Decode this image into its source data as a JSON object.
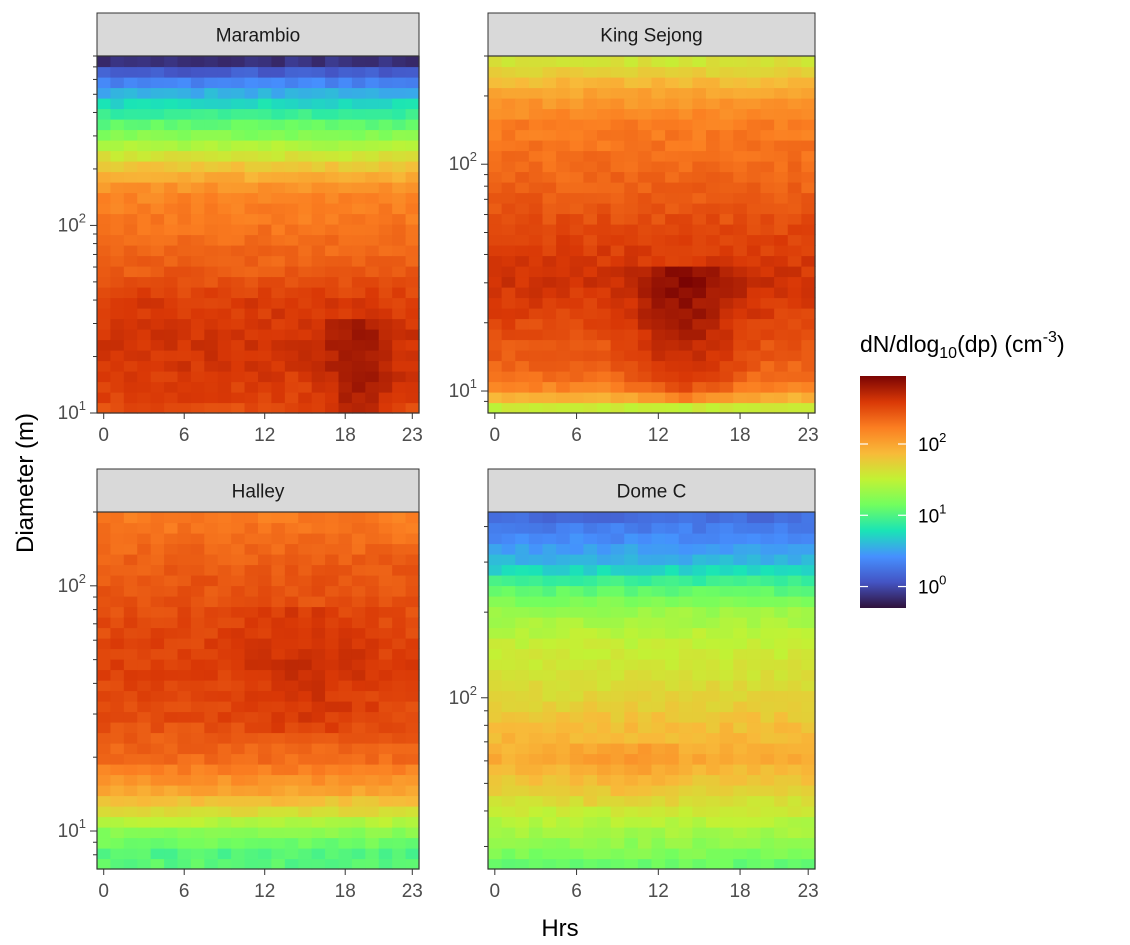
{
  "chart_data": {
    "type": "heatmap",
    "x_label": "Hrs",
    "y_label": "Diameter (m)",
    "color_scale": {
      "title": "dN/dlog",
      "title_sub": "10",
      "title_mid": "(dp) (cm",
      "title_sup": "-3",
      "title_end": ")",
      "log_scale": true,
      "range": [
        0.5,
        900
      ],
      "ticks": [
        {
          "base": "10",
          "exp": "0",
          "value": 1
        },
        {
          "base": "10",
          "exp": "1",
          "value": 10
        },
        {
          "base": "10",
          "exp": "2",
          "value": 100
        }
      ],
      "palette": [
        "#30123b",
        "#4454c4",
        "#4690ff",
        "#1ae4b6",
        "#71fe5f",
        "#c2f234",
        "#f8ba39",
        "#fb7e21",
        "#d93806",
        "#7a0403"
      ]
    },
    "panels": [
      {
        "name": "Marambio",
        "x_ticks": [
          "0",
          "6",
          "12",
          "18",
          "23"
        ],
        "x_range": [
          0,
          23
        ],
        "y_log": true,
        "y_range": [
          10,
          800
        ],
        "y_labeled_ticks": [
          {
            "base": "10",
            "exp": "2",
            "value": 100
          },
          {
            "base": "10",
            "exp": "1",
            "value": 10
          }
        ],
        "y_minor_ticks": [
          20,
          30,
          40,
          50,
          60,
          70,
          80,
          90,
          200,
          300,
          400,
          500,
          600,
          700,
          800
        ],
        "profile": [
          {
            "d": 10,
            "v": 300
          },
          {
            "d": 12,
            "v": 350
          },
          {
            "d": 20,
            "v": 420
          },
          {
            "d": 40,
            "v": 380
          },
          {
            "d": 60,
            "v": 250
          },
          {
            "d": 100,
            "v": 190
          },
          {
            "d": 150,
            "v": 150
          },
          {
            "d": 200,
            "v": 70
          },
          {
            "d": 300,
            "v": 18
          },
          {
            "d": 400,
            "v": 8
          },
          {
            "d": 500,
            "v": 4
          },
          {
            "d": 600,
            "v": 2
          },
          {
            "d": 700,
            "v": 1
          },
          {
            "d": 800,
            "v": 0.6
          }
        ],
        "hour_pattern": {
          "peak_hour": 19,
          "spread_h": 2.5,
          "d_low": 10,
          "d_high": 30,
          "factor": 1.6
        }
      },
      {
        "name": "King Sejong",
        "x_ticks": [
          "0",
          "6",
          "12",
          "18",
          "23"
        ],
        "x_range": [
          0,
          23
        ],
        "y_log": true,
        "y_range": [
          8,
          300
        ],
        "y_labeled_ticks": [
          {
            "base": "10",
            "exp": "2",
            "value": 100
          },
          {
            "base": "10",
            "exp": "1",
            "value": 10
          }
        ],
        "y_minor_ticks": [
          9,
          20,
          30,
          40,
          50,
          60,
          70,
          80,
          90,
          200,
          300
        ],
        "profile": [
          {
            "d": 8,
            "v": 22
          },
          {
            "d": 9,
            "v": 60
          },
          {
            "d": 10,
            "v": 140
          },
          {
            "d": 12,
            "v": 220
          },
          {
            "d": 20,
            "v": 330
          },
          {
            "d": 30,
            "v": 420
          },
          {
            "d": 45,
            "v": 360
          },
          {
            "d": 70,
            "v": 260
          },
          {
            "d": 100,
            "v": 210
          },
          {
            "d": 150,
            "v": 170
          },
          {
            "d": 200,
            "v": 110
          },
          {
            "d": 250,
            "v": 60
          },
          {
            "d": 300,
            "v": 35
          }
        ],
        "hour_pattern": {
          "peak_hour": 14,
          "spread_h": 3.5,
          "d_low": 8.5,
          "d_high": 35,
          "factor": 1.9
        }
      },
      {
        "name": "Halley",
        "x_ticks": [
          "0",
          "6",
          "12",
          "18",
          "23"
        ],
        "x_range": [
          0,
          23
        ],
        "y_log": true,
        "y_range": [
          7,
          200
        ],
        "y_labeled_ticks": [
          {
            "base": "10",
            "exp": "2",
            "value": 100
          },
          {
            "base": "10",
            "exp": "1",
            "value": 10
          }
        ],
        "y_minor_ticks": [
          8,
          9,
          20,
          30,
          40,
          50,
          60,
          70,
          80,
          90,
          200
        ],
        "profile": [
          {
            "d": 7,
            "v": 12
          },
          {
            "d": 8,
            "v": 10
          },
          {
            "d": 9,
            "v": 14
          },
          {
            "d": 10,
            "v": 18
          },
          {
            "d": 12,
            "v": 45
          },
          {
            "d": 15,
            "v": 110
          },
          {
            "d": 20,
            "v": 220
          },
          {
            "d": 30,
            "v": 320
          },
          {
            "d": 50,
            "v": 360
          },
          {
            "d": 80,
            "v": 300
          },
          {
            "d": 120,
            "v": 260
          },
          {
            "d": 200,
            "v": 170
          }
        ],
        "hour_pattern": {
          "peak_hour": 15,
          "spread_h": 5,
          "d_low": 25,
          "d_high": 80,
          "factor": 1.25
        }
      },
      {
        "name": "Dome C",
        "x_ticks": [
          "0",
          "6",
          "12",
          "18",
          "23"
        ],
        "x_range": [
          0,
          23
        ],
        "y_log": true,
        "y_range": [
          25,
          450
        ],
        "y_labeled_ticks": [
          {
            "base": "10",
            "exp": "2",
            "value": 100
          }
        ],
        "y_minor_ticks": [
          30,
          40,
          50,
          60,
          70,
          80,
          90,
          200,
          300,
          400
        ],
        "profile": [
          {
            "d": 25,
            "v": 12
          },
          {
            "d": 30,
            "v": 18
          },
          {
            "d": 40,
            "v": 35
          },
          {
            "d": 50,
            "v": 60
          },
          {
            "d": 60,
            "v": 90
          },
          {
            "d": 80,
            "v": 70
          },
          {
            "d": 100,
            "v": 50
          },
          {
            "d": 150,
            "v": 35
          },
          {
            "d": 200,
            "v": 22
          },
          {
            "d": 250,
            "v": 10
          },
          {
            "d": 300,
            "v": 4
          },
          {
            "d": 400,
            "v": 2
          },
          {
            "d": 450,
            "v": 1.5
          }
        ],
        "hour_pattern": {
          "peak_hour": 10,
          "spread_h": 4,
          "d_low": 40,
          "d_high": 70,
          "factor": 1.3
        }
      }
    ]
  }
}
